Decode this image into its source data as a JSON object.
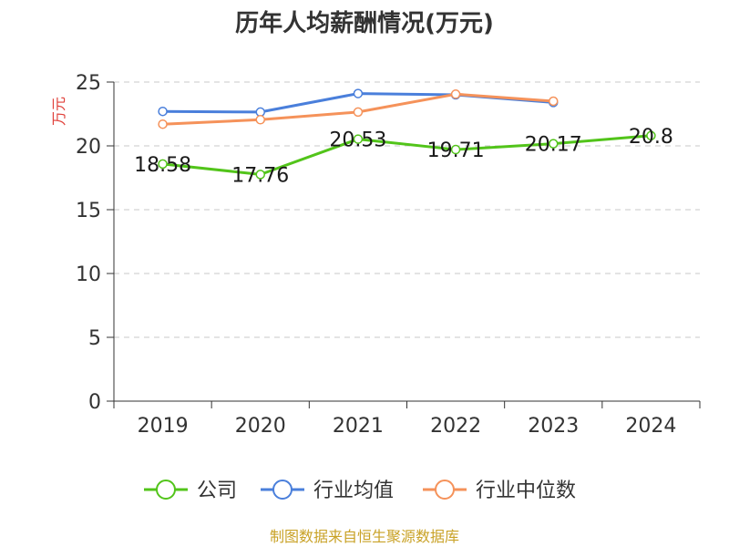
{
  "chart_data": {
    "type": "line",
    "title": "历年人均薪酬情况(万元)",
    "ylabel": "万元",
    "xlabel": "",
    "categories": [
      "2019",
      "2020",
      "2021",
      "2022",
      "2023",
      "2024"
    ],
    "ylim": [
      0,
      25
    ],
    "yticks": [
      0,
      5,
      10,
      15,
      20,
      25
    ],
    "grid": true,
    "legend_position": "bottom",
    "series": [
      {
        "name": "公司",
        "color": "#52c41a",
        "values": [
          18.58,
          17.76,
          20.53,
          19.71,
          20.17,
          20.8
        ],
        "labels": [
          "18.58",
          "17.76",
          "20.53",
          "19.71",
          "20.17",
          "20.8"
        ]
      },
      {
        "name": "行业均值",
        "color": "#4a7fdb",
        "values": [
          22.7,
          22.65,
          24.1,
          24.0,
          23.4,
          null
        ]
      },
      {
        "name": "行业中位数",
        "color": "#f5925a",
        "values": [
          21.7,
          22.05,
          22.65,
          24.05,
          23.5,
          null
        ]
      }
    ]
  },
  "source": "制图数据来自恒生聚源数据库"
}
